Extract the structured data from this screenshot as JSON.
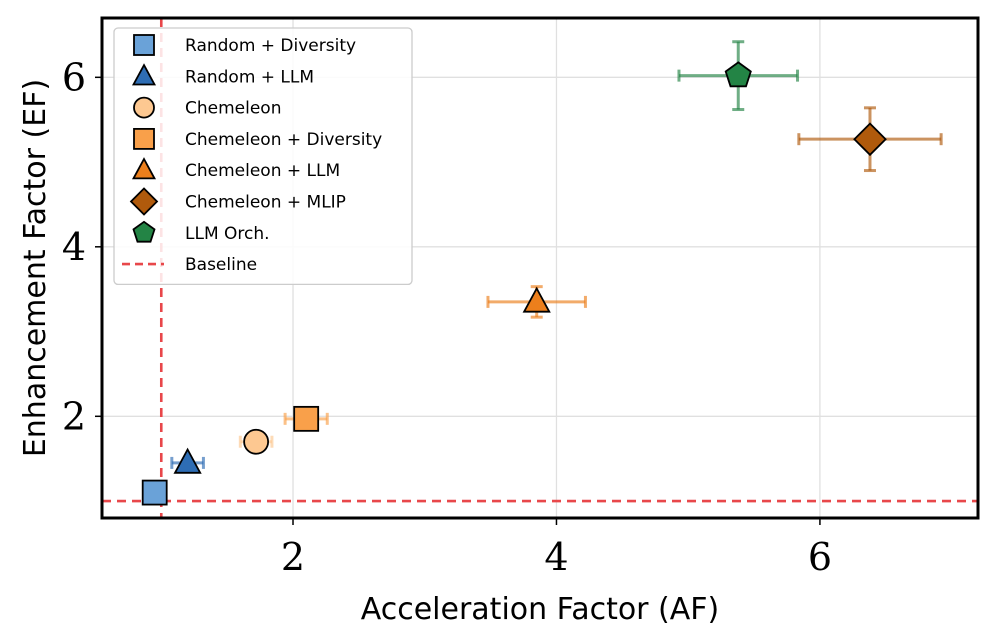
{
  "chart_data": {
    "type": "scatter",
    "xlabel": "Acceleration Factor (AF)",
    "ylabel": "Enhancement Factor (EF)",
    "xlim": [
      0.55,
      7.2
    ],
    "ylim": [
      0.8,
      6.7
    ],
    "xticks": [
      2,
      4,
      6
    ],
    "yticks": [
      2,
      4,
      6
    ],
    "xtick_labels": [
      "2",
      "4",
      "6"
    ],
    "ytick_labels": [
      "2",
      "4",
      "6"
    ],
    "grid": true,
    "legend_position": "top-left",
    "baseline": {
      "name": "Baseline",
      "x": 1,
      "y": 1,
      "color": "#e8474a"
    },
    "series": [
      {
        "name": "Random + Diversity",
        "marker": "square",
        "color": "#6aa2d8",
        "x": 0.95,
        "y": 1.1,
        "xerr": 0.02,
        "yerr": 0.02
      },
      {
        "name": "Random + LLM",
        "marker": "triangle",
        "color": "#2e6db4",
        "x": 1.2,
        "y": 1.45,
        "xerr": 0.12,
        "yerr": 0.03
      },
      {
        "name": "Chemeleon",
        "marker": "circle",
        "color": "#fdc891",
        "x": 1.72,
        "y": 1.7,
        "xerr": 0.12,
        "yerr": 0.03
      },
      {
        "name": "Chemeleon + Diversity",
        "marker": "square",
        "color": "#f9a04a",
        "x": 2.1,
        "y": 1.97,
        "xerr": 0.16,
        "yerr": 0.05
      },
      {
        "name": "Chemeleon + LLM",
        "marker": "triangle",
        "color": "#ec7f1c",
        "x": 3.85,
        "y": 3.35,
        "xerr": 0.37,
        "yerr": 0.18
      },
      {
        "name": "Chemeleon + MLIP",
        "marker": "diamond",
        "color": "#b05a0c",
        "x": 6.38,
        "y": 5.27,
        "xerr": 0.54,
        "yerr": 0.37
      },
      {
        "name": "LLM Orch.",
        "marker": "pentagon",
        "color": "#238445",
        "x": 5.38,
        "y": 6.02,
        "xerr": 0.45,
        "yerr": 0.4
      }
    ]
  }
}
